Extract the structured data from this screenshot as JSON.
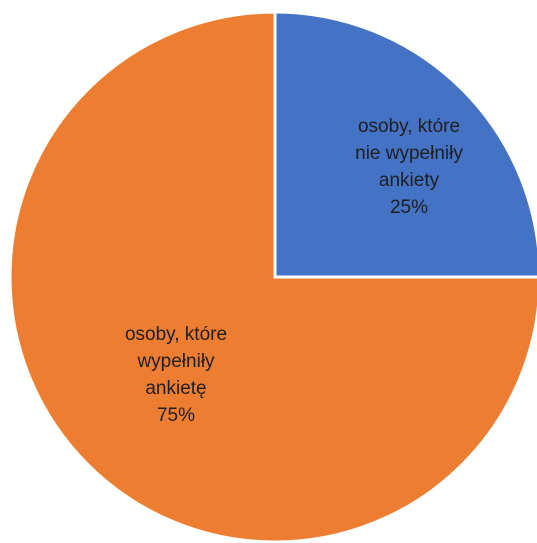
{
  "chart_data": {
    "type": "pie",
    "slices": [
      {
        "label_lines": [
          "osoby, które",
          "nie wypełniły",
          "ankiety"
        ],
        "percent_label": "25%",
        "value": 25,
        "color": "#4472C4"
      },
      {
        "label_lines": [
          "osoby, które",
          "wypełniły",
          "ankietę"
        ],
        "percent_label": "75%",
        "value": 75,
        "color": "#ED7D31"
      }
    ],
    "start_angle": "12 o'clock",
    "direction": "clockwise",
    "separator_color": "#ffffff"
  }
}
